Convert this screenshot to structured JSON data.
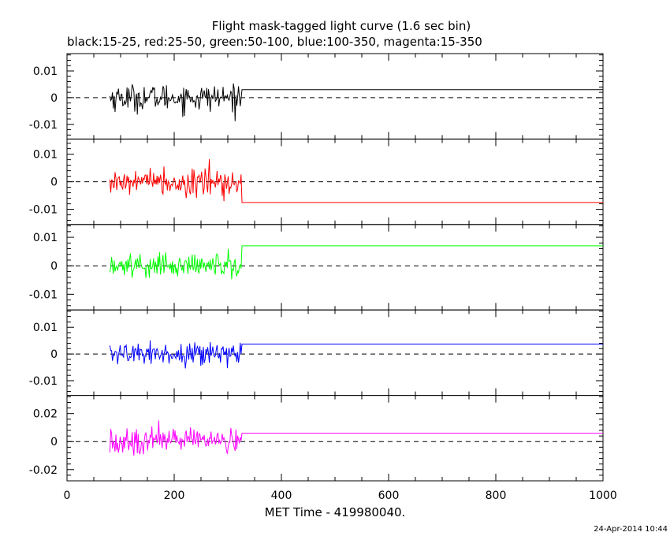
{
  "title": "Flight mask-tagged light curve (1.6 sec bin)",
  "subtitle": "black:15-25, red:25-50, green:50-100, blue:100-350, magenta:15-350",
  "xlabel": "MET Time - 419980040.",
  "timestamp": "24-Apr-2014 10:44",
  "chart_data": {
    "type": "line",
    "title": "Flight mask-tagged light curve (1.6 sec bin)",
    "subtitle": "black:15-25, red:25-50, green:50-100, blue:100-350, magenta:15-350",
    "xlabel": "MET Time - 419980040.",
    "xlim": [
      0,
      1000
    ],
    "x_ticks": [
      0,
      200,
      400,
      600,
      800,
      1000
    ],
    "x_tick_labels": [
      "0",
      "200",
      "400",
      "600",
      "800",
      "1000"
    ],
    "bin_seconds": 1.6,
    "data_x_range": [
      80,
      326
    ],
    "grid": false,
    "zero_line": "dashed",
    "panels": [
      {
        "band": "15-25",
        "color": "#000000",
        "ylim": [
          -0.0155,
          0.0165
        ],
        "y_ticks": [
          -0.01,
          0,
          0.01
        ],
        "y_tick_labels": [
          "-0.01",
          "0",
          "0.01"
        ],
        "noise_amplitude": 0.0042,
        "mean_level": 0.003
      },
      {
        "band": "25-50",
        "color": "#ff0000",
        "ylim": [
          -0.0155,
          0.0155
        ],
        "y_ticks": [
          -0.01,
          0,
          0.01
        ],
        "y_tick_labels": [
          "-0.01",
          "0",
          "0.01"
        ],
        "noise_amplitude": 0.0045,
        "mean_level": -0.0075
      },
      {
        "band": "50-100",
        "color": "#00ff00",
        "ylim": [
          -0.0155,
          0.0145
        ],
        "y_ticks": [
          -0.01,
          0,
          0.01
        ],
        "y_tick_labels": [
          "-0.01",
          "0",
          "0.01"
        ],
        "noise_amplitude": 0.004,
        "mean_level": 0.007
      },
      {
        "band": "100-350",
        "color": "#0000ff",
        "ylim": [
          -0.0155,
          0.0165
        ],
        "y_ticks": [
          -0.01,
          0,
          0.01
        ],
        "y_tick_labels": [
          "-0.01",
          "0",
          "0.01"
        ],
        "noise_amplitude": 0.0035,
        "mean_level": 0.0037
      },
      {
        "band": "15-350",
        "color": "#ff00ff",
        "ylim": [
          -0.028,
          0.033
        ],
        "y_ticks": [
          -0.02,
          0,
          0.02
        ],
        "y_tick_labels": [
          "-0.02",
          "0",
          "0.02"
        ],
        "noise_amplitude": 0.0075,
        "mean_level": 0.006
      }
    ]
  }
}
